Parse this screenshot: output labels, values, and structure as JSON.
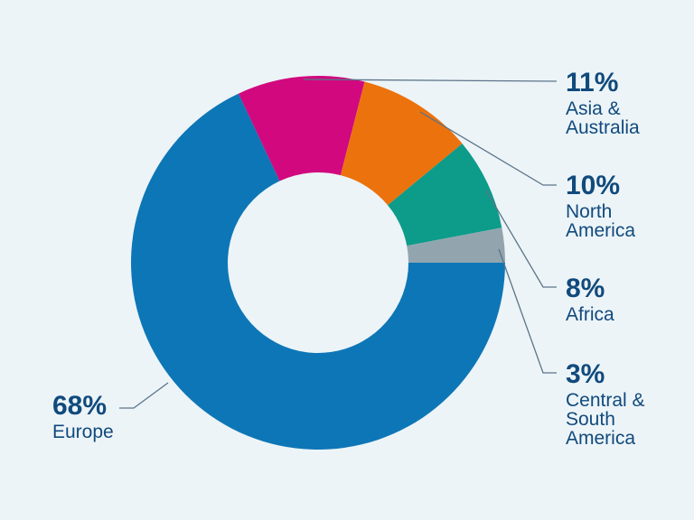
{
  "chart_data": {
    "type": "pie",
    "variant": "donut",
    "title": "",
    "direction": "clockwise",
    "start_angle_deg": -25.2,
    "legend_position": "right-and-bottom-left-callouts",
    "categories": [
      "Asia & Australia",
      "North America",
      "Africa",
      "Central & South America",
      "Europe"
    ],
    "values": [
      11,
      10,
      8,
      3,
      68
    ],
    "segments": [
      {
        "id": "asia-australia",
        "name": "Asia & Australia",
        "value": 11,
        "pct_label": "11%",
        "name_label": "Asia &\nAustralia",
        "color": "#d1087e"
      },
      {
        "id": "north-america",
        "name": "North America",
        "value": 10,
        "pct_label": "10%",
        "name_label": "North\nAmerica",
        "color": "#ec720e"
      },
      {
        "id": "africa",
        "name": "Africa",
        "value": 8,
        "pct_label": "8%",
        "name_label": "Africa",
        "color": "#0d9b8a"
      },
      {
        "id": "central-south-america",
        "name": "Central & South America",
        "value": 3,
        "pct_label": "3%",
        "name_label": "Central &\nSouth\nAmerica",
        "color": "#92a5ae"
      },
      {
        "id": "europe",
        "name": "Europe",
        "value": 68,
        "pct_label": "68%",
        "name_label": "Europe",
        "color": "#0d76b6"
      }
    ]
  },
  "style": {
    "background": "#ecf4f8",
    "hole_color": "#eff6f9",
    "label_text_color": "#114a7c",
    "leader_line_color": "#5b7488"
  }
}
